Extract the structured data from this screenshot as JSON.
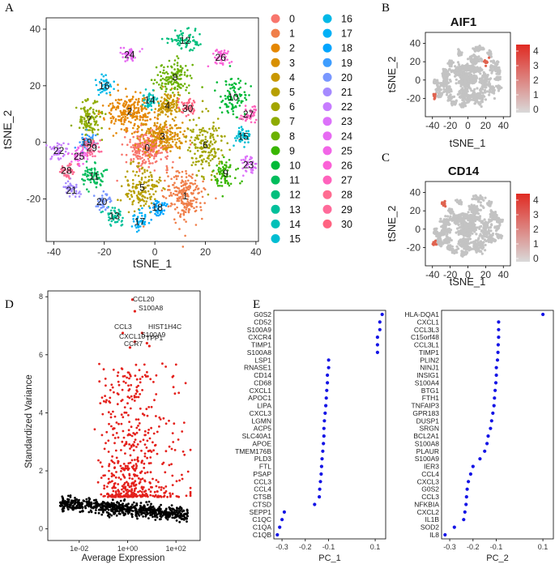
{
  "panel_labels": [
    "A",
    "B",
    "C",
    "D",
    "E"
  ],
  "chart_data": [
    {
      "panel": "A",
      "type": "scatter",
      "xlabel": "tSNE_1",
      "ylabel": "tSNE_2",
      "xticks": [
        -40,
        -20,
        0,
        20,
        40
      ],
      "yticks": [
        -20,
        0,
        20,
        40
      ],
      "xlim": [
        -43,
        41
      ],
      "ylim": [
        -35,
        44
      ],
      "clusters": [
        {
          "id": "0",
          "color": "#F8766D",
          "x": -3,
          "y": -2
        },
        {
          "id": "1",
          "color": "#F07F4A",
          "x": 12,
          "y": -19
        },
        {
          "id": "2",
          "color": "#E58700",
          "x": -10,
          "y": 11
        },
        {
          "id": "3",
          "color": "#D89000",
          "x": 3,
          "y": 2
        },
        {
          "id": "4",
          "color": "#C99800",
          "x": 5,
          "y": 13
        },
        {
          "id": "5",
          "color": "#B79F00",
          "x": -5,
          "y": -16
        },
        {
          "id": "6",
          "color": "#A3A500",
          "x": 20,
          "y": -1
        },
        {
          "id": "7",
          "color": "#8EAB00",
          "x": -26,
          "y": 8
        },
        {
          "id": "8",
          "color": "#6BB100",
          "x": 8,
          "y": 23
        },
        {
          "id": "9",
          "color": "#39B600",
          "x": 28,
          "y": -11
        },
        {
          "id": "10",
          "color": "#00BA38",
          "x": 31,
          "y": 16
        },
        {
          "id": "11",
          "color": "#00BD5C",
          "x": -24,
          "y": -12
        },
        {
          "id": "12",
          "color": "#00BF7D",
          "x": 12,
          "y": 36
        },
        {
          "id": "13",
          "color": "#00C09B",
          "x": -16,
          "y": -26
        },
        {
          "id": "14",
          "color": "#00C0B8",
          "x": -2,
          "y": 15
        },
        {
          "id": "15",
          "color": "#00BDD2",
          "x": 35,
          "y": 2
        },
        {
          "id": "16",
          "color": "#00B8E7",
          "x": -20,
          "y": 20
        },
        {
          "id": "17",
          "color": "#00B0F6",
          "x": -6,
          "y": -28
        },
        {
          "id": "18",
          "color": "#00A5FF",
          "x": 1,
          "y": -23
        },
        {
          "id": "19",
          "color": "#3E9DFF",
          "x": -27,
          "y": 0
        },
        {
          "id": "20",
          "color": "#7997FF",
          "x": -21,
          "y": -21
        },
        {
          "id": "21",
          "color": "#A58AFF",
          "x": -33,
          "y": -17
        },
        {
          "id": "22",
          "color": "#C77CFF",
          "x": -38,
          "y": -3
        },
        {
          "id": "23",
          "color": "#DC71FA",
          "x": 37,
          "y": -8
        },
        {
          "id": "24",
          "color": "#E76BF3",
          "x": -10,
          "y": 31
        },
        {
          "id": "25",
          "color": "#F265E7",
          "x": -30,
          "y": -5
        },
        {
          "id": "26",
          "color": "#FB61D7",
          "x": 26,
          "y": 30
        },
        {
          "id": "27",
          "color": "#FF62BC",
          "x": 37,
          "y": 10
        },
        {
          "id": "28",
          "color": "#FF6C91",
          "x": -35,
          "y": -10
        },
        {
          "id": "29",
          "color": "#FF6A9A",
          "x": -25,
          "y": -2
        },
        {
          "id": "30",
          "color": "#FF6381",
          "x": 13,
          "y": 12
        }
      ]
    },
    {
      "panel": "B",
      "type": "scatter",
      "title": "AIF1",
      "xlabel": "tSNE_1",
      "ylabel": "tSNE_2",
      "xticks": [
        -40,
        -20,
        0,
        20,
        40
      ],
      "yticks": [
        -20,
        0,
        20,
        40
      ],
      "colorbar_ticks": [
        0,
        1,
        2,
        3,
        4
      ]
    },
    {
      "panel": "C",
      "type": "scatter",
      "title": "CD14",
      "xlabel": "tSNE_1",
      "ylabel": "tSNE_2",
      "xticks": [
        -40,
        -20,
        0,
        20,
        40
      ],
      "yticks": [
        -20,
        0,
        20,
        40
      ],
      "colorbar_ticks": [
        0,
        1,
        2,
        3,
        4
      ]
    },
    {
      "panel": "D",
      "type": "scatter",
      "xlabel": "Average Expression",
      "ylabel": "Standardized Variance",
      "xticks": [
        "1e-02",
        "1e+00",
        "1e+02"
      ],
      "yticks": [
        0,
        2,
        4,
        6,
        8
      ],
      "highlighted_genes": [
        "CCL20",
        "S100A8",
        "HIST1H4C",
        "CCL3",
        "CXCL10",
        "S100A9",
        "CCR7",
        "TPP1"
      ]
    },
    {
      "panel": "E1",
      "type": "scatter",
      "xlabel": "PC_1",
      "xticks": [
        "-0.3",
        "-0.2",
        "-0.1",
        "0.1"
      ],
      "genes": [
        "G0S2",
        "CD52",
        "S100A9",
        "CXCR4",
        "TIMP1",
        "S100A8",
        "LSP1",
        "RNASE1",
        "CD14",
        "CD68",
        "CXCL1",
        "APOC1",
        "LIPA",
        "CXCL3",
        "LGMN",
        "ACP5",
        "SLC40A1",
        "APOE",
        "TMEM176B",
        "PLD3",
        "FTL",
        "PSAP",
        "CCL3",
        "CCL4",
        "CTSB",
        "CTSD",
        "SEPP1",
        "C1QC",
        "C1QA",
        "C1QB"
      ],
      "values": [
        0.13,
        0.12,
        0.12,
        0.11,
        0.11,
        0.11,
        -0.1,
        -0.1,
        -0.105,
        -0.105,
        -0.108,
        -0.11,
        -0.112,
        -0.115,
        -0.118,
        -0.12,
        -0.12,
        -0.122,
        -0.125,
        -0.128,
        -0.13,
        -0.132,
        -0.135,
        -0.138,
        -0.14,
        -0.16,
        -0.29,
        -0.3,
        -0.31,
        -0.32
      ]
    },
    {
      "panel": "E2",
      "type": "scatter",
      "xlabel": "PC_2",
      "xticks": [
        "-0.3",
        "-0.2",
        "-0.1",
        "0.1"
      ],
      "genes": [
        "HLA-DQA1",
        "CXCL1",
        "CCL3L3",
        "C15orf48",
        "CCL3L1",
        "TIMP1",
        "PLIN2",
        "NINJ1",
        "INSIG1",
        "S100A4",
        "BTG1",
        "FTH1",
        "TNFAIP3",
        "GPR183",
        "DUSP1",
        "SRGN",
        "BCL2A1",
        "S100A8",
        "PLAUR",
        "S100A9",
        "IER3",
        "CCL4",
        "CXCL3",
        "G0S2",
        "CCL3",
        "NFKBIA",
        "CXCL2",
        "IL1B",
        "SOD2",
        "IL8"
      ],
      "values": [
        0.1,
        -0.09,
        -0.09,
        -0.09,
        -0.092,
        -0.093,
        -0.095,
        -0.1,
        -0.1,
        -0.102,
        -0.105,
        -0.108,
        -0.11,
        -0.115,
        -0.12,
        -0.125,
        -0.135,
        -0.14,
        -0.15,
        -0.17,
        -0.2,
        -0.21,
        -0.22,
        -0.225,
        -0.228,
        -0.23,
        -0.235,
        -0.24,
        -0.28,
        -0.32
      ]
    }
  ]
}
